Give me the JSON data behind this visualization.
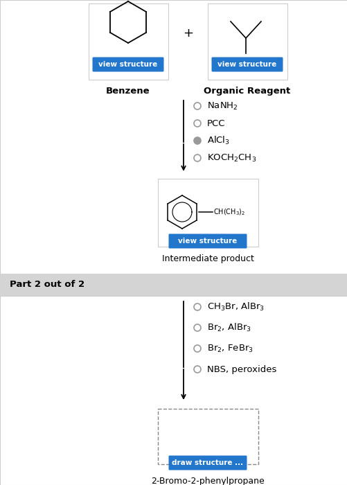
{
  "bg_color": "#e0e0e0",
  "white": "#ffffff",
  "blue_btn": "#2277cc",
  "btn_text": "view structure",
  "draw_btn": "draw structure ...",
  "benzene_label": "Benzene",
  "reagent_label": "Organic Reagent",
  "part1_options": [
    {
      "text": "NaNH$_2$",
      "selected": false
    },
    {
      "text": "PCC",
      "selected": false
    },
    {
      "text": "AlCl$_3$",
      "selected": true
    },
    {
      "text": "KOCH$_2$CH$_3$",
      "selected": false
    }
  ],
  "part2_label": "Part 2 out of 2",
  "part2_options": [
    {
      "text": "CH$_3$Br, AlBr$_3$",
      "selected": false
    },
    {
      "text": "Br$_2$, AlBr$_3$",
      "selected": false
    },
    {
      "text": "Br$_2$, FeBr$_3$",
      "selected": false
    },
    {
      "text": "NBS, peroxides",
      "selected": false
    }
  ],
  "intermediate_label": "Intermediate product",
  "final_label": "2-Bromo-2-phenylpropane",
  "plus_sign": "+"
}
